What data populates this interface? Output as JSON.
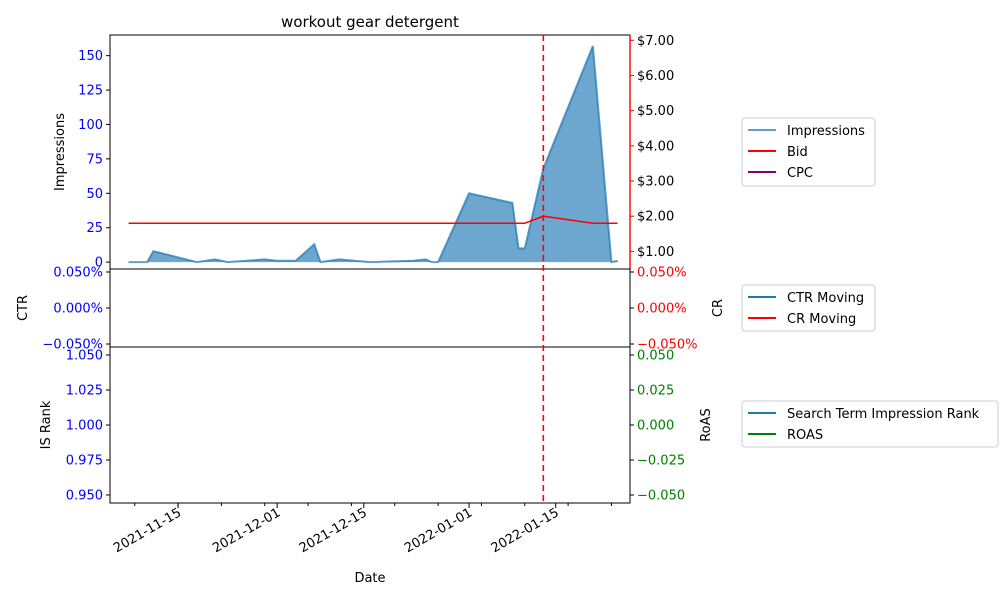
{
  "chart_data": {
    "type": "line",
    "title": "workout gear detergent",
    "xlabel": "Date",
    "x_ticks": [
      "2021-11-15",
      "2021-12-01",
      "2021-12-15",
      "2022-01-01",
      "2022-01-15"
    ],
    "event_date": "2022-01-13",
    "colors": {
      "impressions": "#1f77b4",
      "bid": "#ff0000",
      "cpc": "#800080",
      "ctr": "#1f77b4",
      "cr": "#ff0000",
      "rank": "#1f77b4",
      "roas": "#008000",
      "left_tick": "#0000ff",
      "right_tick_top": "#ff0000",
      "right_tick_bottom": "#008000",
      "event_line": "#ff0000"
    },
    "panels": {
      "top": {
        "ylabel": "Impressions",
        "ylim": [
          -5,
          165
        ],
        "y_ticks": [
          0,
          25,
          50,
          75,
          100,
          125,
          150
        ],
        "right_ylim": [
          0.5,
          7.15
        ],
        "right_ticks": [
          1,
          2,
          3,
          4,
          5,
          6,
          7
        ],
        "right_tick_labels": [
          "$1.00",
          "$2.00",
          "$3.00",
          "$4.00",
          "$5.00",
          "$6.00",
          "$7.00"
        ],
        "impressions": {
          "name": "Impressions",
          "x": [
            "2021-11-07",
            "2021-11-10",
            "2021-11-11",
            "2021-11-18",
            "2021-11-21",
            "2021-11-23",
            "2021-11-29",
            "2021-12-01",
            "2021-12-04",
            "2021-12-07",
            "2021-12-08",
            "2021-12-11",
            "2021-12-16",
            "2021-12-23",
            "2021-12-25",
            "2021-12-26",
            "2021-12-27",
            "2022-01-01",
            "2022-01-08",
            "2022-01-09",
            "2022-01-10",
            "2022-01-13",
            "2022-01-21",
            "2022-01-24",
            "2022-01-25"
          ],
          "values": [
            0,
            0,
            8,
            0,
            2,
            0,
            2,
            1,
            1,
            13,
            0,
            2,
            0,
            1,
            2,
            0,
            0,
            50,
            43,
            10,
            10,
            68,
            157,
            0,
            1
          ]
        },
        "bid": {
          "name": "Bid",
          "x": [
            "2021-11-07",
            "2022-01-10",
            "2022-01-13",
            "2022-01-21",
            "2022-01-25"
          ],
          "values": [
            1.8,
            1.8,
            2.0,
            1.8,
            1.8
          ]
        },
        "cpc": {
          "name": "CPC"
        }
      },
      "middle": {
        "ylabel": "CTR",
        "right_ylabel": "CR",
        "ylim": [
          -0.05,
          0.05
        ],
        "y_tick_labels": [
          "0.050%",
          "0.000%",
          "−0.050%"
        ],
        "right_tick_labels": [
          "0.050%",
          "0.000%",
          "−0.050%"
        ],
        "series": [
          {
            "name": "CTR Moving"
          },
          {
            "name": "CR Moving"
          }
        ]
      },
      "bottom": {
        "ylabel": "IS Rank",
        "right_ylabel": "RoAS",
        "ylim": [
          0.945,
          1.055
        ],
        "y_tick_labels": [
          "1.050",
          "1.025",
          "1.000",
          "0.975",
          "0.950"
        ],
        "right_tick_labels": [
          "0.050",
          "0.025",
          "0.000",
          "−0.025",
          "−0.050"
        ],
        "series": [
          {
            "name": "Search Term Impression Rank"
          },
          {
            "name": "ROAS"
          }
        ]
      }
    }
  }
}
